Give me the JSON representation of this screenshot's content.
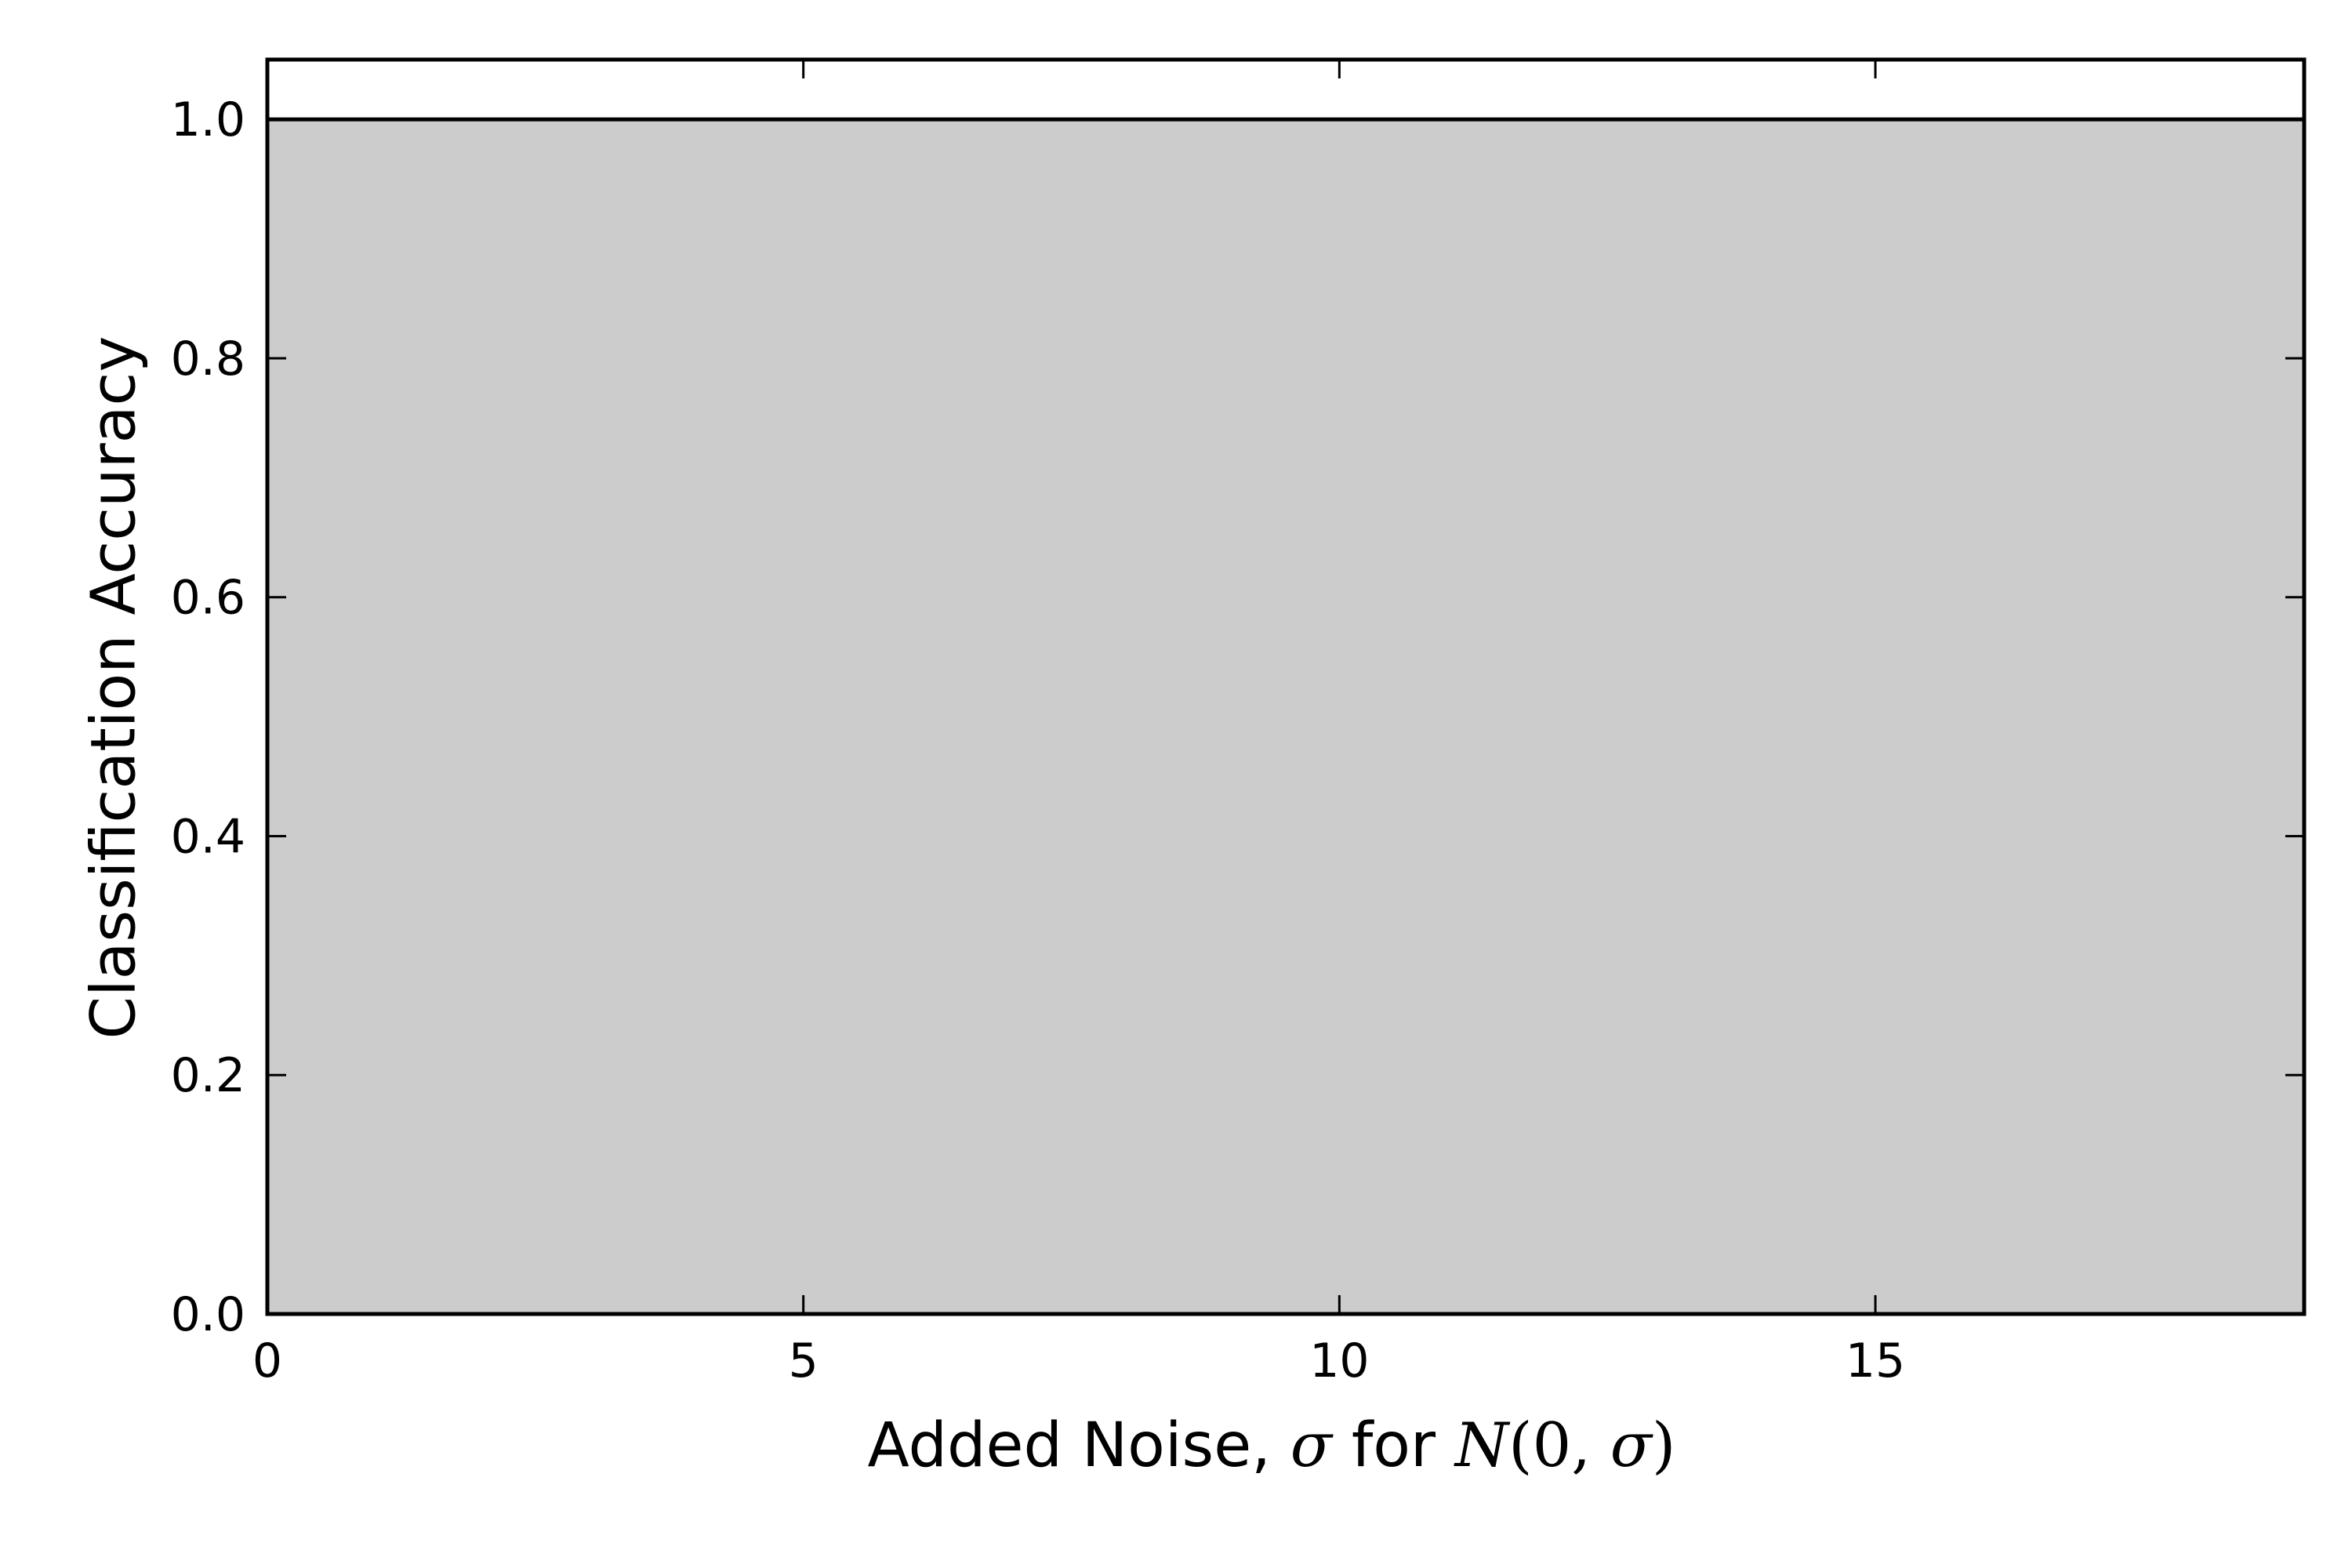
{
  "chart_data": {
    "type": "area",
    "title": "",
    "xlabel": {
      "prefix": "Added Noise, ",
      "sigma": "σ",
      "middle": " for ",
      "N": "N",
      "paren_open": "(",
      "zero": "0",
      "comma": ", ",
      "sigma2": "σ",
      "paren_close": ")"
    },
    "ylabel": "Classification Accuracy",
    "xlim": [
      0,
      19
    ],
    "ylim": [
      0,
      1.05
    ],
    "x_ticks": [
      0,
      5,
      10,
      15
    ],
    "x_tick_labels": [
      "0",
      "5",
      "10",
      "15"
    ],
    "y_ticks": [
      0.0,
      0.2,
      0.4,
      0.6,
      0.8,
      1.0
    ],
    "y_tick_labels": [
      "0.0",
      "0.2",
      "0.4",
      "0.6",
      "0.8",
      "1.0"
    ],
    "grid": false,
    "series": [
      {
        "x": [
          0,
          19
        ],
        "y": [
          1.0,
          1.0
        ],
        "line_color": "#000000",
        "fill_color": "#cccccc"
      }
    ]
  }
}
